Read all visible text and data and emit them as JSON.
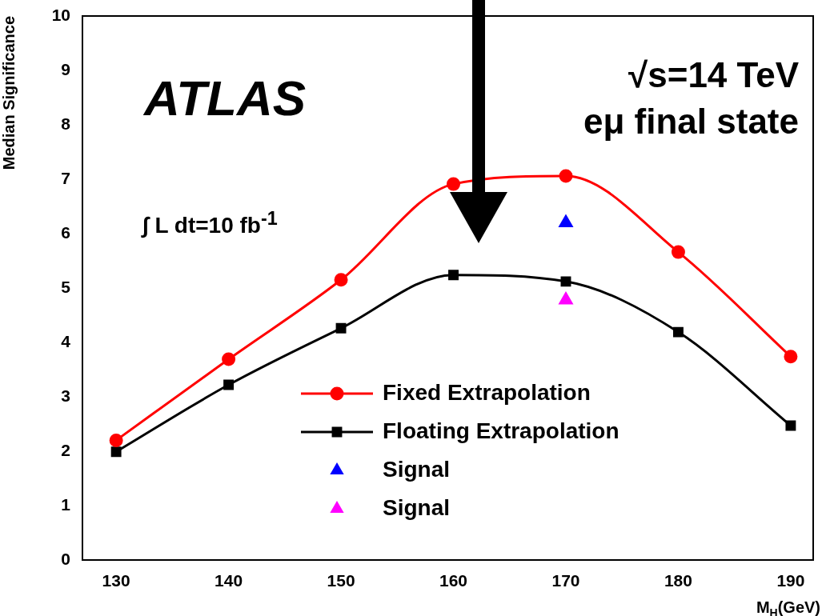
{
  "chart_data": {
    "type": "line",
    "xlabel": "M$_{H}$(GeV)",
    "ylabel": "Median Significance",
    "x": [
      130,
      140,
      150,
      160,
      170,
      180,
      190
    ],
    "xlim": [
      127,
      192
    ],
    "xticks": [
      130,
      140,
      150,
      160,
      170,
      180,
      190
    ],
    "ylim": [
      0,
      10
    ],
    "yticks": [
      0,
      1,
      2,
      3,
      4,
      5,
      6,
      7,
      8,
      9,
      10
    ],
    "grid": false,
    "legend": "bottom right",
    "series": [
      {
        "name": "Fixed Extrapolation",
        "marker": "circle",
        "color": "#ff0000",
        "values": [
          2.2,
          3.69,
          5.15,
          6.91,
          7.06,
          5.66,
          3.74
        ]
      },
      {
        "name": "Floating Extrapolation",
        "marker": "square",
        "color": "#000000",
        "values": [
          1.99,
          3.22,
          4.26,
          5.24,
          5.12,
          4.19,
          2.47
        ]
      },
      {
        "name": "Signal",
        "type": "scatter",
        "marker": "triangle",
        "color": "#0000ff",
        "x": [
          170
        ],
        "values": [
          6.2
        ]
      },
      {
        "name": "Signal",
        "type": "scatter",
        "marker": "triangle",
        "color": "#ff00ff",
        "x": [
          170
        ],
        "values": [
          4.78
        ]
      }
    ],
    "annotations": [
      "ATLAS",
      "√s=14 TeV",
      "eμ final state",
      "∫ L dt=10 fb$^{-1}$"
    ]
  }
}
